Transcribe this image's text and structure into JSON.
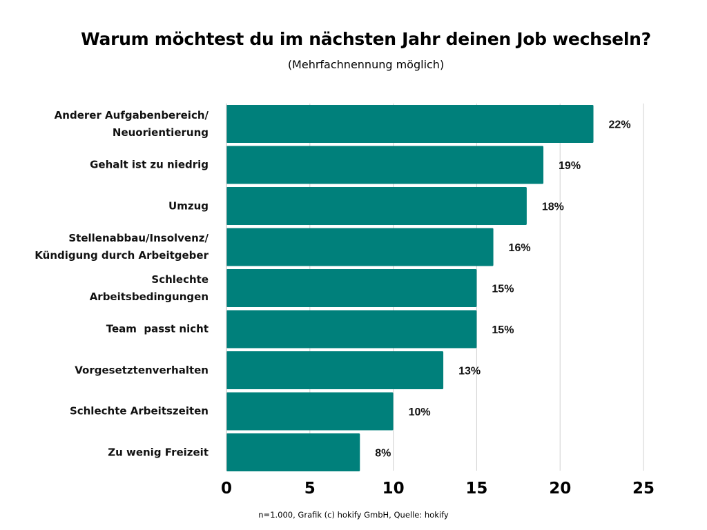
{
  "chart_data": {
    "type": "bar",
    "orientation": "horizontal",
    "title": "Warum möchtest du im nächsten Jahr deinen Job wechseln?",
    "subtitle": "(Mehrfachnennung möglich)",
    "categories": [
      "Anderer Aufgabenbereich/\nNeuorientierung",
      "Gehalt ist zu niedrig",
      "Umzug",
      "Stellenabbau/Insolvenz/\nKündigung durch Arbeitgeber",
      "Schlechte\nArbeitsbedingungen",
      "Team  passt nicht",
      "Vorgesetztenverhalten",
      "Schlechte Arbeitszeiten",
      "Zu wenig Freizeit"
    ],
    "values": [
      22,
      19,
      18,
      16,
      15,
      15,
      13,
      10,
      8
    ],
    "data_labels": [
      "22%",
      "19%",
      "18%",
      "16%",
      "15%",
      "15%",
      "13%",
      "10%",
      "8%"
    ],
    "xlim": [
      0,
      25
    ],
    "xticks": [
      "0",
      "5",
      "10",
      "15",
      "20",
      "25"
    ],
    "grid": true,
    "bar_color": "#00807b",
    "grid_color": "#d0d0d0",
    "footer": "n=1.000, Grafik (c) hokify GmbH, Quelle: hokify"
  }
}
